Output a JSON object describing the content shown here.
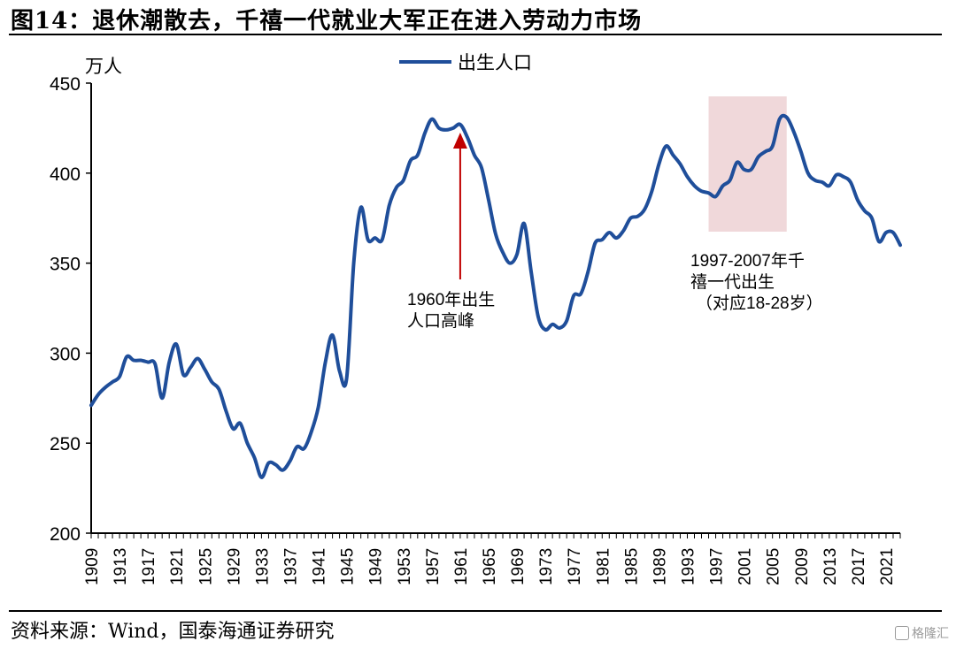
{
  "header": {
    "title": "图14：退休潮散去，千禧一代就业大军正在进入劳动力市场"
  },
  "footer": {
    "source": "资料来源：Wind，国泰海通证券研究",
    "watermark": "格隆汇"
  },
  "colors": {
    "line": "#1F4E9A",
    "highlight": "#F0D8DA",
    "arrow": "#C00000",
    "axis": "#000000"
  },
  "chart_data": {
    "type": "line",
    "ylabel": "万人",
    "ylim": [
      200,
      450
    ],
    "yticks": [
      200,
      250,
      300,
      350,
      400,
      450
    ],
    "xlim": [
      1909,
      2023
    ],
    "xticks": [
      1909,
      1913,
      1917,
      1921,
      1925,
      1929,
      1933,
      1937,
      1941,
      1945,
      1949,
      1953,
      1957,
      1961,
      1965,
      1969,
      1973,
      1977,
      1981,
      1985,
      1989,
      1993,
      1997,
      2001,
      2005,
      2009,
      2013,
      2017,
      2021
    ],
    "grid": false,
    "legend": "top-center",
    "series": [
      {
        "name": "出生人口",
        "x": [
          1909,
          1910,
          1911,
          1912,
          1913,
          1914,
          1915,
          1916,
          1917,
          1918,
          1919,
          1920,
          1921,
          1922,
          1923,
          1924,
          1925,
          1926,
          1927,
          1928,
          1929,
          1930,
          1931,
          1932,
          1933,
          1934,
          1935,
          1936,
          1937,
          1938,
          1939,
          1940,
          1941,
          1942,
          1943,
          1944,
          1945,
          1946,
          1947,
          1948,
          1949,
          1950,
          1951,
          1952,
          1953,
          1954,
          1955,
          1956,
          1957,
          1958,
          1959,
          1960,
          1961,
          1962,
          1963,
          1964,
          1965,
          1966,
          1967,
          1968,
          1969,
          1970,
          1971,
          1972,
          1973,
          1974,
          1975,
          1976,
          1977,
          1978,
          1979,
          1980,
          1981,
          1982,
          1983,
          1984,
          1985,
          1986,
          1987,
          1988,
          1989,
          1990,
          1991,
          1992,
          1993,
          1994,
          1995,
          1996,
          1997,
          1998,
          1999,
          2000,
          2001,
          2002,
          2003,
          2004,
          2005,
          2006,
          2007,
          2008,
          2009,
          2010,
          2011,
          2012,
          2013,
          2014,
          2015,
          2016,
          2017,
          2018,
          2019,
          2020,
          2021,
          2022,
          2023
        ],
        "values": [
          271,
          277,
          281,
          284,
          287,
          298,
          296,
          296,
          295,
          294,
          275,
          295,
          305,
          288,
          292,
          297,
          291,
          284,
          280,
          268,
          258,
          261,
          250,
          242,
          231,
          239,
          238,
          235,
          240,
          248,
          247,
          256,
          270,
          295,
          310,
          290,
          286,
          350,
          381,
          363,
          364,
          363,
          382,
          392,
          396,
          407,
          410,
          422,
          430,
          425,
          424,
          425,
          427,
          420,
          410,
          403,
          385,
          366,
          356,
          350,
          355,
          372,
          345,
          320,
          313,
          316,
          314,
          318,
          332,
          333,
          345,
          361,
          363,
          367,
          364,
          368,
          375,
          376,
          380,
          390,
          405,
          415,
          410,
          405,
          398,
          393,
          390,
          389,
          387,
          393,
          396,
          406,
          402,
          402,
          409,
          412,
          415,
          430,
          431,
          423,
          412,
          400,
          396,
          395,
          393,
          399,
          398,
          395,
          385,
          379,
          375,
          362,
          367,
          367,
          360
        ]
      }
    ],
    "annotations": [
      {
        "text": [
          "1960年出生",
          "人口高峰"
        ],
        "year": 1961
      },
      {
        "text": [
          "1997-2007年千",
          "禧一代出生",
          "（对应18-28岁）"
        ],
        "year_range": [
          1996,
          2007
        ]
      }
    ]
  }
}
